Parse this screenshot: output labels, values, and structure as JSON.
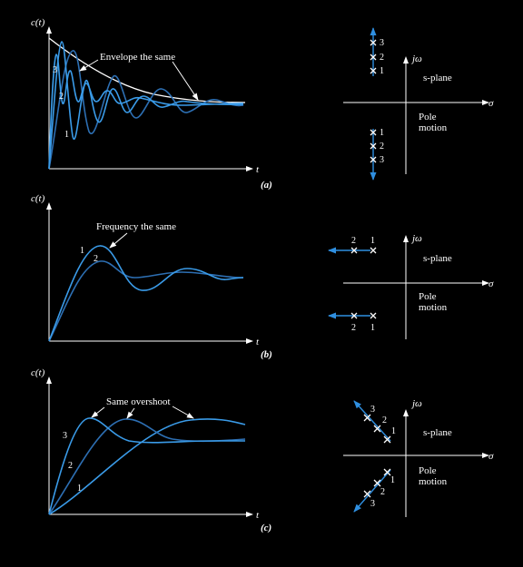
{
  "colors": {
    "background": "#000000",
    "axis": "#ffffff",
    "curve": "#3a9be8",
    "curve_dim": "#2d6fb3",
    "pole_motion": "#2f8fe0"
  },
  "panel_a": {
    "ylabel": "c(t)",
    "tlabel": "t",
    "caption": "(a)",
    "annotation": "Envelope the same",
    "curve_labels": [
      "3",
      "2",
      "1"
    ],
    "jw": "jω",
    "sigma": "σ",
    "splane": "s-plane",
    "pole_motion": [
      "Pole",
      "motion"
    ],
    "upper_pole_labels": [
      "3",
      "2",
      "1"
    ],
    "lower_pole_labels": [
      "1",
      "2",
      "3"
    ]
  },
  "panel_b": {
    "ylabel": "c(t)",
    "tlabel": "t",
    "caption": "(b)",
    "annotation": "Frequency the same",
    "curve_labels": [
      "1",
      "2"
    ],
    "jw": "jω",
    "sigma": "σ",
    "splane": "s-plane",
    "pole_motion": [
      "Pole",
      "motion"
    ],
    "upper_pole_labels": [
      "2",
      "1"
    ],
    "lower_pole_labels": [
      "2",
      "1"
    ]
  },
  "panel_c": {
    "ylabel": "c(t)",
    "tlabel": "t",
    "caption": "(c)",
    "annotation": "Same overshoot",
    "curve_labels": [
      "3",
      "2",
      "1"
    ],
    "jw": "jω",
    "sigma": "σ",
    "splane": "s-plane",
    "pole_motion": [
      "Pole",
      "motion"
    ],
    "upper_pole_labels": [
      "3",
      "2",
      "1"
    ],
    "lower_pole_labels": [
      "1",
      "2",
      "3"
    ]
  }
}
